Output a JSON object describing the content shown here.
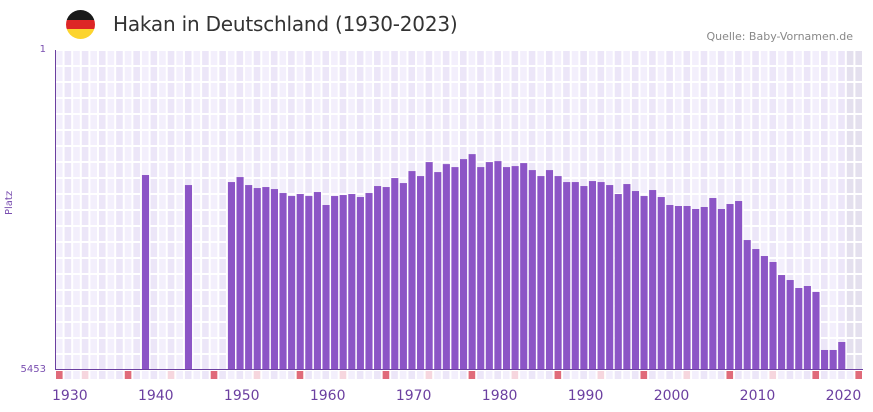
{
  "header": {
    "title": "Hakan in Deutschland (1930-2023)",
    "source": "Quelle: Baby-Vornamen.de",
    "flag_colors": [
      "#1a1a1a",
      "#dd2626",
      "#fcd42e"
    ]
  },
  "colors": {
    "bar": "#8c55c6",
    "grid_bg_a": "#f3effc",
    "grid_bg_b": "#ece6f8",
    "future_bg": "#e4e0ee",
    "axis": "#6b3fa0",
    "decade_mark": "#e06b7a",
    "fiveyear_mark": "#f6d6de"
  },
  "chart_data": {
    "type": "bar",
    "title": "Hakan in Deutschland (1930-2023)",
    "xlabel": "",
    "ylabel": "Platz",
    "y_inverted": true,
    "ylim": [
      5453,
      1
    ],
    "yticks": [
      "1",
      "5453"
    ],
    "xticks": [
      "1930",
      "1940",
      "1950",
      "1960",
      "1970",
      "1980",
      "1990",
      "2000",
      "2010",
      "2020"
    ],
    "x_start": 1930,
    "x_end": 2023,
    "grid": true,
    "legend": null,
    "categories": [
      1940,
      1945,
      1950,
      1951,
      1952,
      1953,
      1954,
      1955,
      1956,
      1957,
      1958,
      1959,
      1960,
      1961,
      1962,
      1963,
      1964,
      1965,
      1966,
      1967,
      1968,
      1969,
      1970,
      1971,
      1972,
      1973,
      1974,
      1975,
      1976,
      1977,
      1978,
      1979,
      1980,
      1981,
      1982,
      1983,
      1984,
      1985,
      1986,
      1987,
      1988,
      1989,
      1990,
      1991,
      1992,
      1993,
      1994,
      1995,
      1996,
      1997,
      1998,
      1999,
      2000,
      2001,
      2002,
      2003,
      2004,
      2005,
      2006,
      2007,
      2008,
      2009,
      2010,
      2011,
      2012,
      2013,
      2014,
      2015,
      2016,
      2017,
      2018,
      2019,
      2020,
      2021
    ],
    "values": [
      2131,
      2302,
      2251,
      2166,
      2302,
      2353,
      2336,
      2370,
      2438,
      2489,
      2455,
      2489,
      2421,
      2642,
      2489,
      2472,
      2455,
      2506,
      2438,
      2319,
      2336,
      2183,
      2268,
      2064,
      2149,
      1911,
      2081,
      1945,
      1996,
      1860,
      1775,
      1996,
      1911,
      1894,
      1996,
      1979,
      1928,
      2047,
      2149,
      2047,
      2149,
      2251,
      2251,
      2319,
      2234,
      2251,
      2302,
      2455,
      2285,
      2404,
      2489,
      2387,
      2506,
      2642,
      2659,
      2659,
      2710,
      2676,
      2523,
      2710,
      2625,
      2574,
      3239,
      3392,
      3511,
      3613,
      3835,
      3920,
      4056,
      4022,
      4124,
      5112,
      5112,
      4976
    ]
  }
}
